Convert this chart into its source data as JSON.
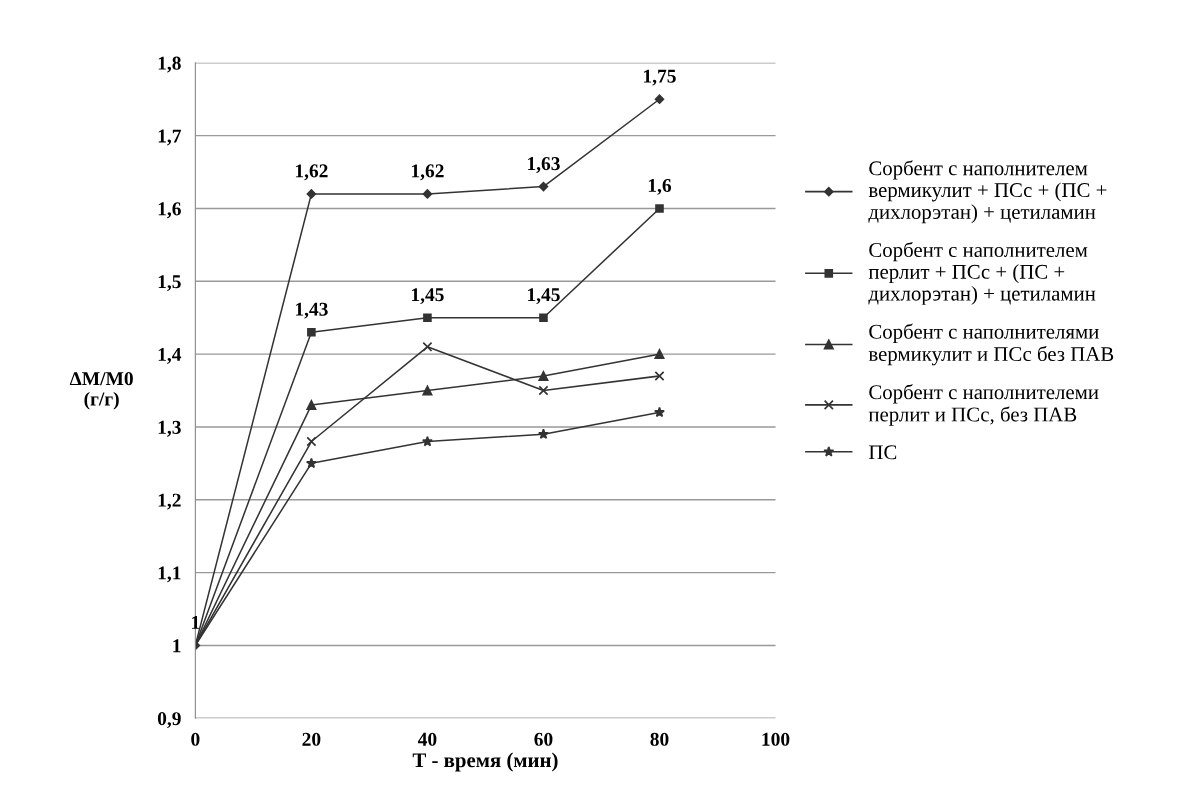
{
  "chart_data": {
    "type": "line",
    "xlabel": "Т - время (мин)",
    "ylabel": "ΔM/M0\n(г/г)",
    "x": [
      0,
      20,
      40,
      60,
      80
    ],
    "xlim": [
      0,
      100
    ],
    "xticks": [
      0,
      20,
      40,
      60,
      80,
      100
    ],
    "ylim": [
      0.9,
      1.8
    ],
    "yticks": [
      {
        "value": 0.9,
        "label": "0,9"
      },
      {
        "value": 1,
        "label": "1"
      },
      {
        "value": 1.1,
        "label": "1,1"
      },
      {
        "value": 1.2,
        "label": "1,2"
      },
      {
        "value": 1.3,
        "label": "1,3"
      },
      {
        "value": 1.4,
        "label": "1,4"
      },
      {
        "value": 1.5,
        "label": "1,5"
      },
      {
        "value": 1.6,
        "label": "1,6"
      },
      {
        "value": 1.7,
        "label": "1,7"
      },
      {
        "value": 1.8,
        "label": "1,8"
      }
    ],
    "grid": "y",
    "legend": "right",
    "line_style": "solid",
    "series": [
      {
        "name": "Сорбент с наполнителем вермикулит + ПСс + (ПС + дихлорэтан) + цетиламин",
        "color": "#333333",
        "marker": "diamond",
        "values": [
          1,
          1.62,
          1.62,
          1.63,
          1.75
        ],
        "value_labels": [
          "1",
          "1,62",
          "1,62",
          "1,63",
          "1,75"
        ]
      },
      {
        "name": "Сорбент с наполнителем перлит + ПСс + (ПС + дихлорэтан) + цетиламин",
        "color": "#333333",
        "marker": "square",
        "values": [
          1,
          1.43,
          1.45,
          1.45,
          1.6
        ],
        "value_labels": [
          null,
          "1,43",
          "1,45",
          "1,45",
          "1,6"
        ]
      },
      {
        "name": "Сорбент с наполнителями вермикулит и ПСс без ПАВ",
        "color": "#333333",
        "marker": "triangle",
        "values": [
          1,
          1.33,
          1.35,
          1.37,
          1.4
        ]
      },
      {
        "name": "Сорбент с наполнителеми перлит и ПСс, без ПАВ",
        "color": "#333333",
        "marker": "cross",
        "values": [
          1,
          1.28,
          1.41,
          1.35,
          1.37
        ]
      },
      {
        "name": "ПС",
        "color": "#333333",
        "marker": "star",
        "values": [
          1,
          1.25,
          1.28,
          1.29,
          1.32
        ]
      }
    ]
  }
}
